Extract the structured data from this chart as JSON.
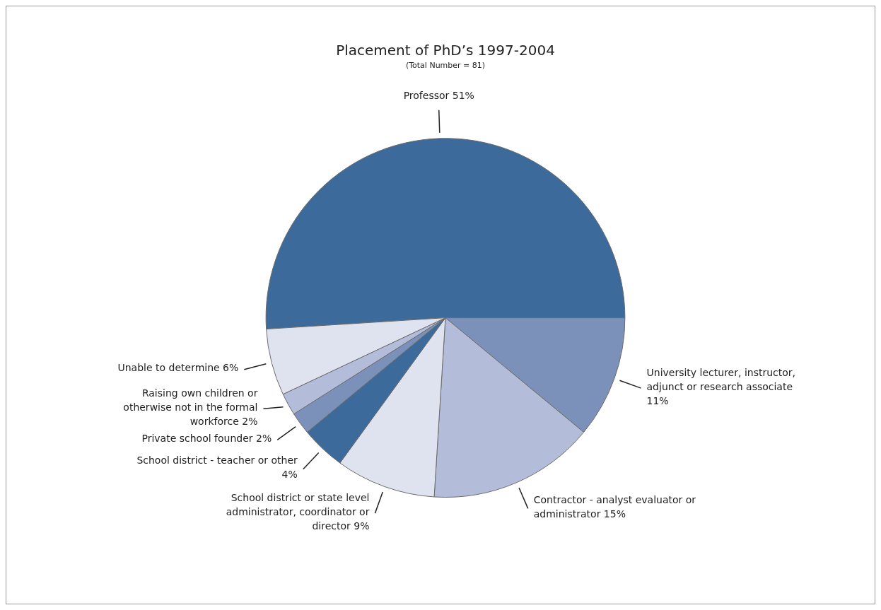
{
  "chart_data": {
    "type": "pie",
    "title": "Placement of PhD’s 1997-2004",
    "subtitle": "(Total Number = 81)",
    "categories": [
      "Professor",
      "University lecturer, instructor, adjunct or research associate",
      "Contractor - analyst evaluator or administrator",
      "School district or state level administrator, coordinator or director",
      "School district - teacher or other",
      "Private school founder",
      "Raising own children or otherwise not in the formal workforce",
      "Unable to determine"
    ],
    "values": [
      51,
      11,
      15,
      9,
      4,
      2,
      2,
      6
    ],
    "value_labels": [
      "51%",
      "11%",
      "15%",
      "9%",
      "4%",
      "2%",
      "2%",
      "6%"
    ],
    "colors": [
      "#3c6a9b",
      "#7b91b9",
      "#b3bdd9",
      "#dfe3ef",
      "#3c6a9b",
      "#7b91b9",
      "#b3bdd9",
      "#dfe3ef"
    ],
    "legend": false
  }
}
